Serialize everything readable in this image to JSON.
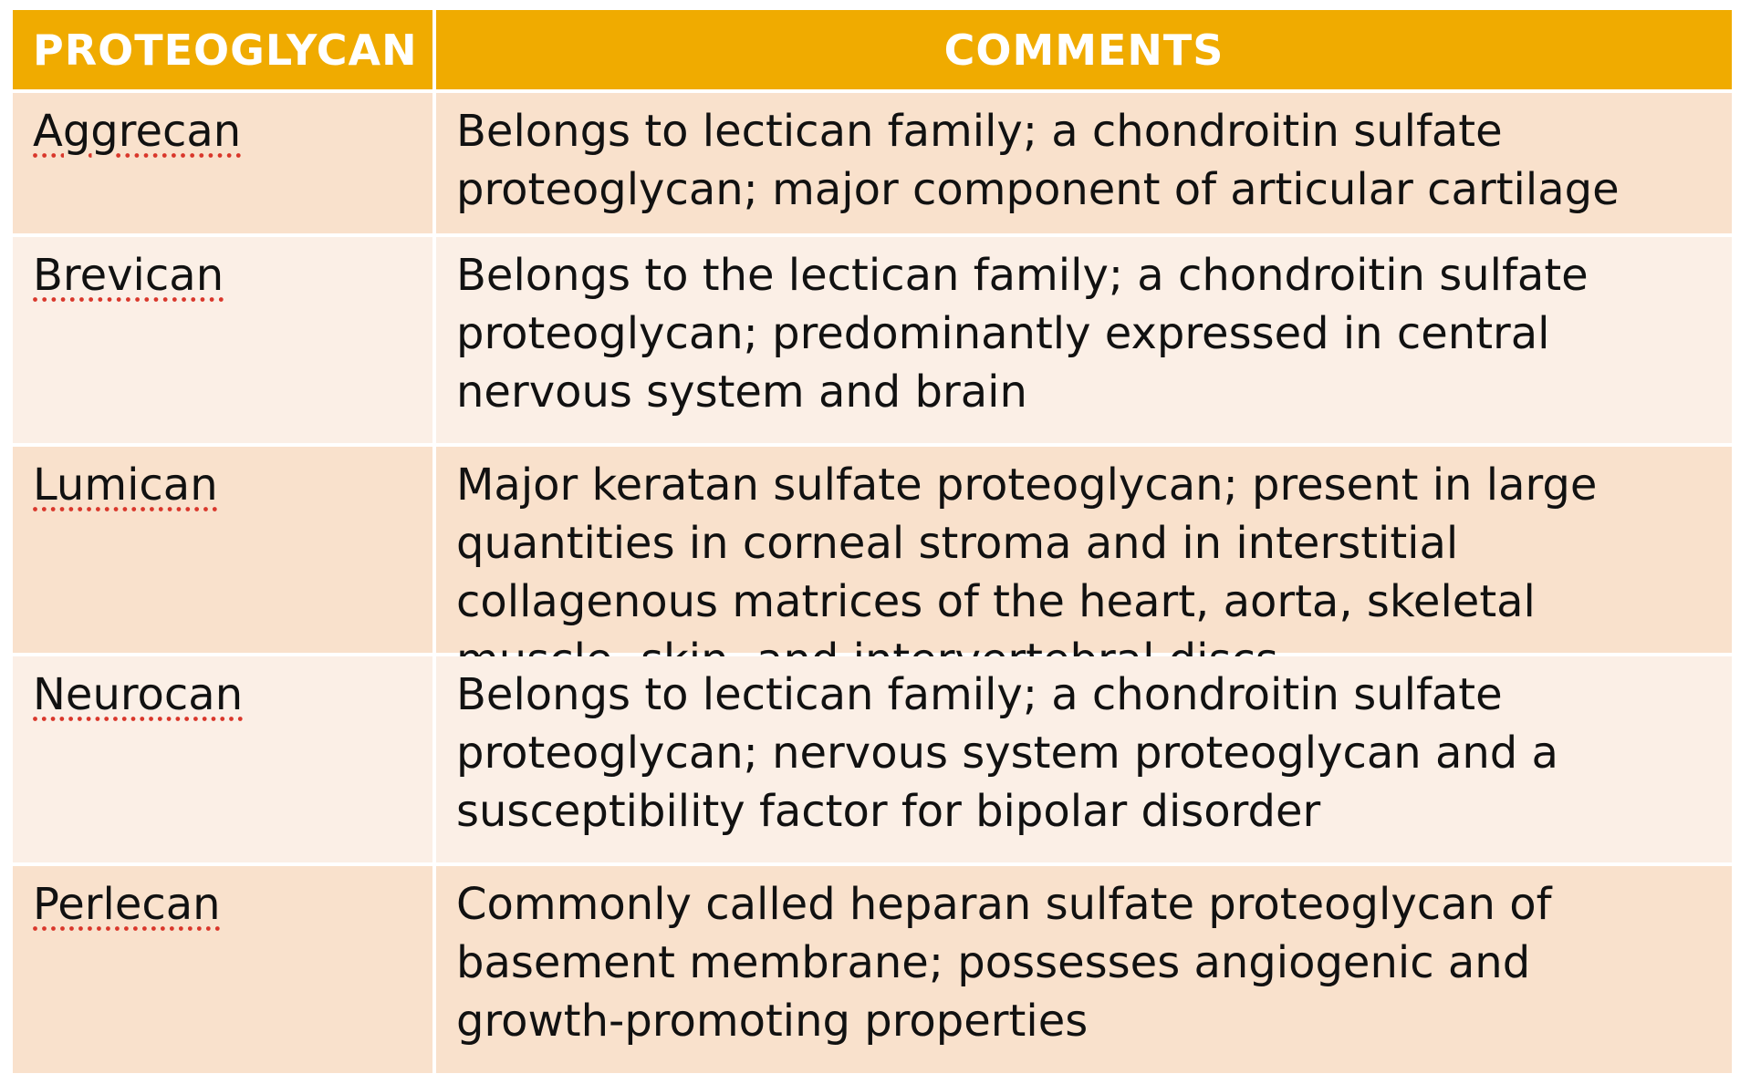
{
  "table": {
    "headers": {
      "col1": "PROTEOGLYCAN",
      "col2": "COMMENTS"
    },
    "rows": [
      {
        "name": "Aggrecan",
        "comment": "Belongs to lectican family; a chondroitin sulfate proteoglycan; major component of articular cartilage"
      },
      {
        "name": "Brevican",
        "comment": "Belongs to the lectican family; a chondroitin sulfate proteoglycan; predominantly expressed in central nervous system and brain"
      },
      {
        "name": "Lumican",
        "comment": "Major keratan sulfate proteoglycan; present in large quantities in corneal stroma and in interstitial collagenous matrices of the heart, aorta, skeletal muscle, skin, and intervertebral discs"
      },
      {
        "name": "Neurocan",
        "comment": "Belongs to lectican family; a chondroitin sulfate proteoglycan; nervous system proteoglycan and a susceptibility factor for bipolar disorder"
      },
      {
        "name": "Perlecan",
        "comment": "Commonly called heparan sulfate proteoglycan of basement membrane; possesses angiogenic and growth-promoting properties"
      }
    ],
    "colors": {
      "header_bg": "#f0ab00",
      "row_odd_bg": "#f9e1cc",
      "row_even_bg": "#fbefe6"
    }
  }
}
